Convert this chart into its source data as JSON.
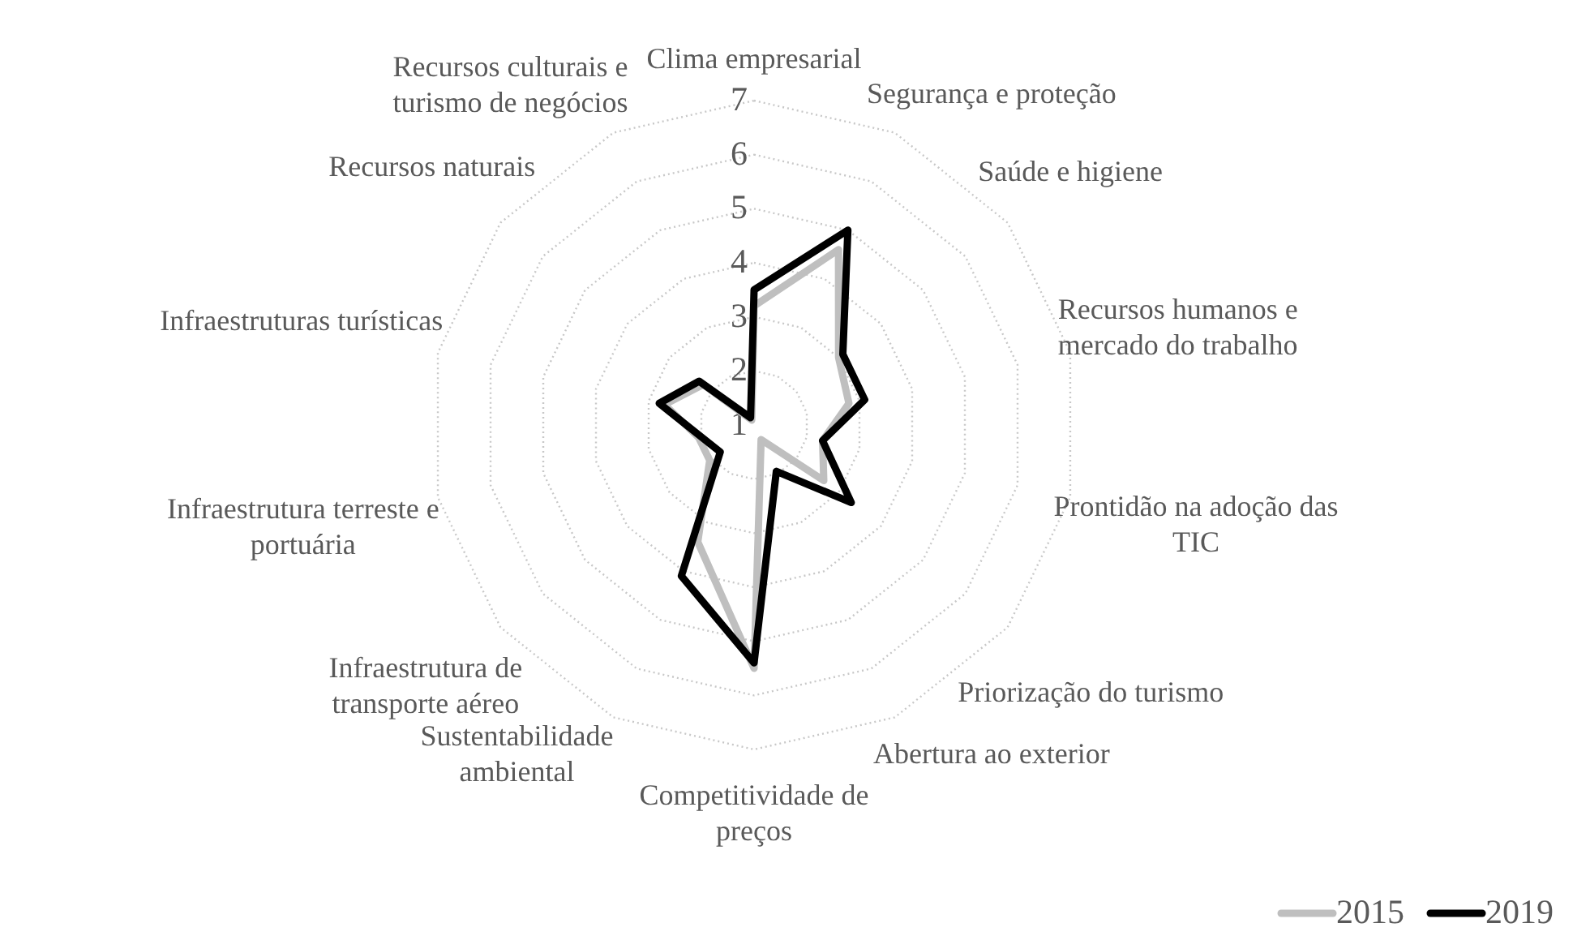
{
  "chart_data": {
    "type": "radar",
    "categories": [
      "Clima empresarial",
      "Segurança e proteção",
      "Saúde e higiene",
      "Recursos humanos e\nmercado do trabalho",
      "Prontidão na adoção das\nTIC",
      "Priorização do turismo",
      "Abertura ao exterior",
      "Competitividade de\npreços",
      "Sustentabilidade\nambiental",
      "Infraestrutura de\ntransporte aéreo",
      "Infraestrutura terreste e\nportuária",
      "Infraestruturas turísticas",
      "Recursos naturais",
      "Recursos culturais e\nturismo de negócios"
    ],
    "series": [
      {
        "name": "2015",
        "color": "#bfbfbf",
        "values": [
          3.2,
          4.6,
          3.0,
          2.8,
          2.3,
          2.65,
          1.3,
          5.5,
          3.4,
          2.05,
          2.05,
          2.7,
          2.2,
          1.1
        ]
      },
      {
        "name": "2019",
        "color": "#000000",
        "values": [
          3.5,
          5.0,
          3.1,
          3.1,
          2.3,
          3.3,
          1.95,
          5.4,
          4.1,
          1.8,
          2.0,
          2.8,
          2.3,
          1.15
        ]
      }
    ],
    "ylim": [
      1,
      7
    ],
    "yticks": [
      1,
      2,
      3,
      4,
      5,
      6,
      7
    ],
    "grid": true,
    "legend": "bottom right",
    "marker": "none",
    "line_style": "solid"
  }
}
